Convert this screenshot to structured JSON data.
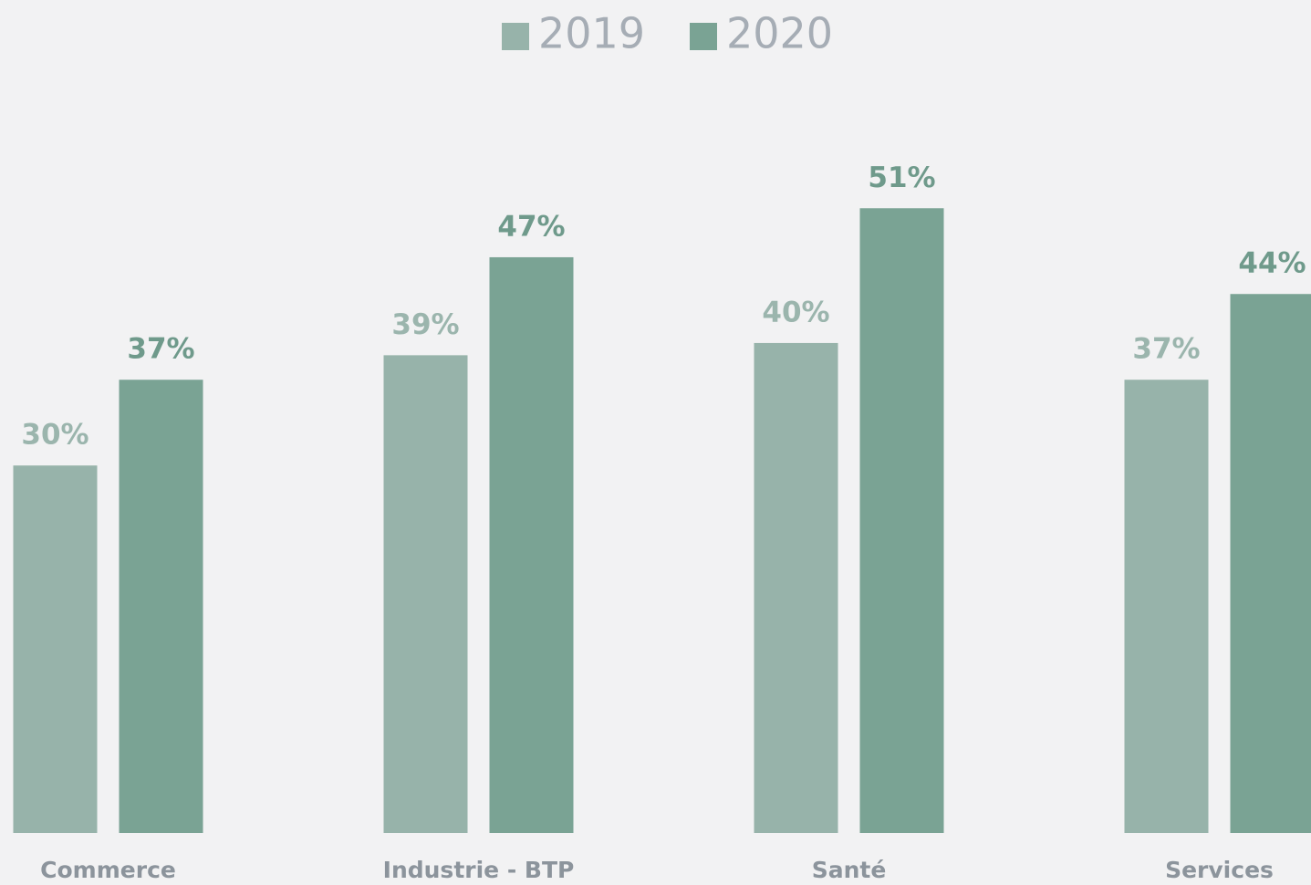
{
  "chart_data": {
    "type": "bar",
    "categories": [
      "Commerce",
      "Industrie - BTP",
      "Santé",
      "Services"
    ],
    "series": [
      {
        "name": "2019",
        "color": "#97b3aa",
        "values": [
          30,
          39,
          40,
          37
        ],
        "value_labels": [
          "30%",
          "39%",
          "40%",
          "37%"
        ]
      },
      {
        "name": "2020",
        "color": "#7aa394",
        "values": [
          37,
          47,
          51,
          44
        ],
        "value_labels": [
          "37%",
          "47%",
          "51%",
          "44%"
        ]
      }
    ],
    "ylim": [
      0,
      68
    ],
    "legend": "top"
  }
}
